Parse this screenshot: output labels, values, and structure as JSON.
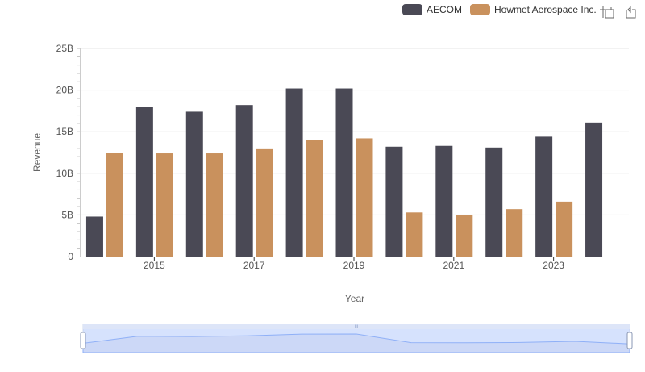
{
  "chart_data": {
    "type": "bar",
    "xlabel": "Year",
    "ylabel": "Revenue",
    "ylim": [
      0,
      25000000000
    ],
    "y_ticks": [
      {
        "value": 0,
        "label": "0"
      },
      {
        "value": 5000000000,
        "label": "5B"
      },
      {
        "value": 10000000000,
        "label": "10B"
      },
      {
        "value": 15000000000,
        "label": "15B"
      },
      {
        "value": 20000000000,
        "label": "20B"
      },
      {
        "value": 25000000000,
        "label": "25B"
      }
    ],
    "categories": [
      "2014",
      "2015",
      "2016",
      "2017",
      "2018",
      "2019",
      "2020",
      "2021",
      "2022",
      "2023",
      "2024"
    ],
    "x_tick_labels": [
      "2015",
      "2017",
      "2019",
      "2021",
      "2023"
    ],
    "grid": true,
    "legend_position": "top-right",
    "series": [
      {
        "name": "AECOM",
        "color": "#4a4955",
        "values": [
          4800000000,
          18000000000,
          17400000000,
          18200000000,
          20200000000,
          20200000000,
          13200000000,
          13300000000,
          13100000000,
          14400000000,
          16100000000
        ]
      },
      {
        "name": "Howmet Aerospace Inc.",
        "color": "#c9915d",
        "values": [
          12500000000,
          12400000000,
          12400000000,
          12900000000,
          14000000000,
          14200000000,
          5300000000,
          5000000000,
          5700000000,
          6600000000,
          null
        ]
      }
    ]
  },
  "toolbox": {
    "icons": [
      "zoom-icon",
      "zoom-reset-icon"
    ]
  },
  "datazoom": {
    "range_start_percent": 0,
    "range_end_percent": 100
  }
}
